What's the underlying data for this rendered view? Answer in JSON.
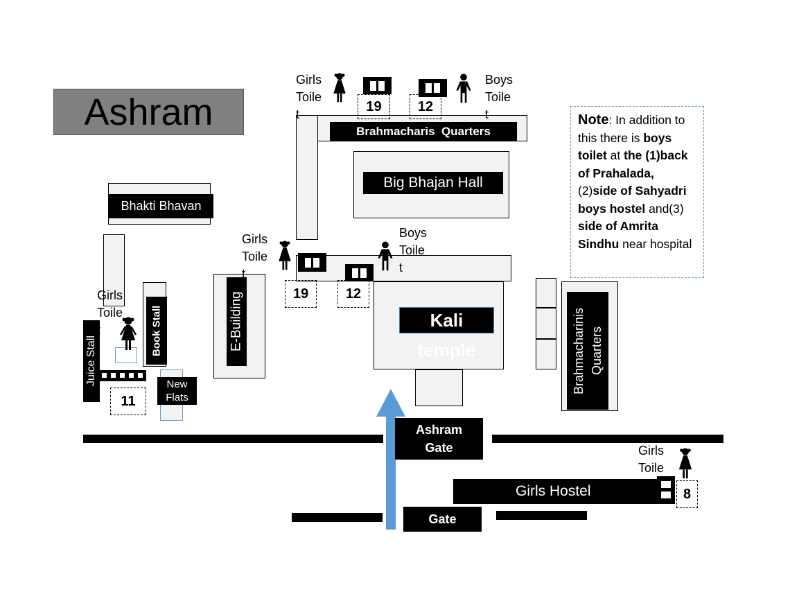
{
  "title": "Ashram",
  "buildings": {
    "brahmacharis_quarters": "Brahmacharis  Quarters",
    "big_bhajan_hall": "Big Bhajan Hall",
    "bhakti_bhavan": "Bhakti Bhavan",
    "e_building": "E-Building",
    "book_stall": "Book Stall",
    "juice_stall": "Juice Stall",
    "new_flats": "New\nFlats",
    "kali_temple_line1": "Kali",
    "kali_temple_line2": "temple",
    "brahmacharinis_quarters": "Brahmacharinis\nQuarters",
    "ashram_gate": "Ashram\nGate",
    "girls_hostel": "Girls Hostel",
    "gate": "Gate"
  },
  "toilets": {
    "top_girls_label": "Girls\nToile\nt",
    "top_girls_num": "19",
    "top_boys_label": "Boys\nToile\nt",
    "top_boys_num": "12",
    "mid_girls_label": "Girls\nToile\nt",
    "mid_girls_num": "19",
    "mid_boys_label": "Boys\nToile\nt",
    "mid_boys_num": "12",
    "left_girls_label": "Girls\nToile\nt",
    "left_num": "11",
    "hostel_girls_label": "Girls\nToile",
    "hostel_num": "8"
  },
  "note": {
    "head": "Note",
    "t1": ": In addition to this there is ",
    "b1": "boys toilet",
    "t2": " at ",
    "b2": "the (1)back of Prahalada,",
    "t3": " (2)",
    "b3": "side of Sahyadri boys hostel",
    "t4": " and(3) ",
    "b4": "side of Amrita Sindhu",
    "t5": " near hospital"
  },
  "colors": {
    "arrow": "#5b9bd5",
    "title_bg": "#808080",
    "note_border": "#6a9ac4"
  }
}
